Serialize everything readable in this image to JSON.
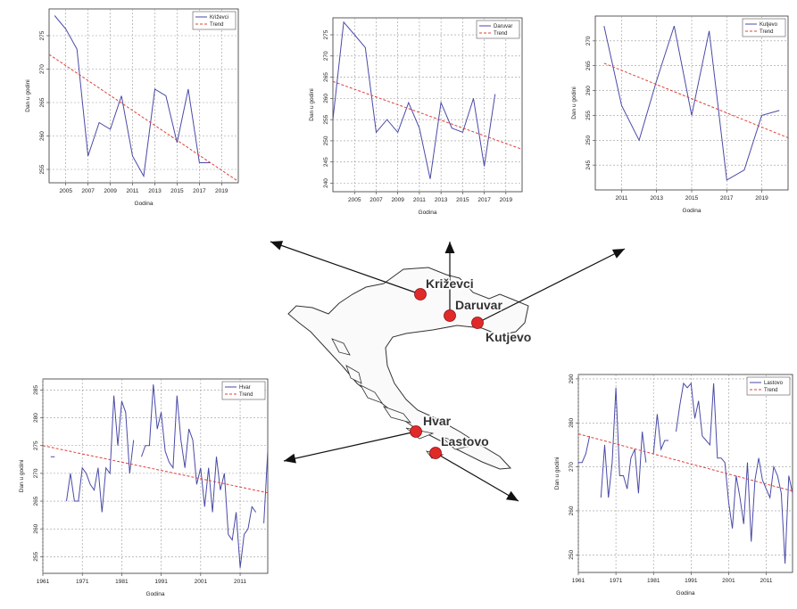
{
  "chart_data": [
    {
      "type": "line",
      "title": "",
      "xlabel": "Godina",
      "ylabel": "Dan u godini",
      "x": [
        2004,
        2005,
        2006,
        2007,
        2008,
        2009,
        2010,
        2011,
        2012,
        2013,
        2014,
        2015,
        2016,
        2017,
        2018
      ],
      "series": [
        {
          "name": "Križevci",
          "values": [
            278,
            276,
            273,
            257,
            262,
            261,
            266,
            257,
            254,
            267,
            266,
            259,
            267,
            256,
            256
          ]
        },
        {
          "name": "Trend",
          "values": [
            272.2,
            253.2
          ],
          "x": [
            2003.5,
            2020.5
          ],
          "dashed": true
        }
      ],
      "xticks": [
        2005,
        2007,
        2009,
        2011,
        2013,
        2015,
        2017,
        2019
      ],
      "yticks": [
        255,
        260,
        265,
        270,
        275
      ],
      "xlim": [
        2003.5,
        2020.5
      ],
      "ylim": [
        253,
        279
      ],
      "legend": "top-right",
      "colors": {
        "series": "#4a4aa8",
        "trend": "#e0403a"
      }
    },
    {
      "type": "line",
      "title": "",
      "xlabel": "Godina",
      "ylabel": "Dan u godini",
      "x": [
        2003,
        2004,
        2005,
        2006,
        2007,
        2008,
        2009,
        2010,
        2011,
        2012,
        2013,
        2014,
        2015,
        2016,
        2017,
        2018
      ],
      "series": [
        {
          "name": "Daruvar",
          "values": [
            255,
            278,
            275,
            272,
            252,
            255,
            252,
            259,
            253,
            241,
            259,
            253,
            252,
            260,
            244,
            261
          ]
        },
        {
          "name": "Trend",
          "values": [
            264,
            248
          ],
          "x": [
            2003,
            2020.5
          ],
          "dashed": true
        }
      ],
      "xticks": [
        2005,
        2007,
        2009,
        2011,
        2013,
        2015,
        2017,
        2019
      ],
      "yticks": [
        240,
        245,
        250,
        255,
        260,
        265,
        270,
        275
      ],
      "xlim": [
        2003,
        2020.5
      ],
      "ylim": [
        238,
        279
      ],
      "legend": "top-right",
      "colors": {
        "series": "#4a4aa8",
        "trend": "#e0403a"
      }
    },
    {
      "type": "line",
      "title": "",
      "xlabel": "Godina",
      "ylabel": "Dan u godini",
      "x": [
        2010,
        2011,
        2012,
        2013,
        2014,
        2015,
        2016,
        2017,
        2018,
        2019,
        2020
      ],
      "series": [
        {
          "name": "Kutjevo",
          "values": [
            273,
            257,
            250,
            262,
            273,
            255,
            272,
            242,
            244,
            255,
            256
          ]
        },
        {
          "name": "Trend",
          "values": [
            265.5,
            250.5
          ],
          "x": [
            2010,
            2020.5
          ],
          "dashed": true
        }
      ],
      "xticks": [
        2011,
        2013,
        2015,
        2017,
        2019
      ],
      "yticks": [
        245,
        250,
        255,
        260,
        265,
        270
      ],
      "xlim": [
        2009.5,
        2020.5
      ],
      "ylim": [
        240,
        275
      ],
      "legend": "top-right",
      "colors": {
        "series": "#4a4aa8",
        "trend": "#e0403a"
      }
    },
    {
      "type": "line",
      "title": "",
      "xlabel": "Godina",
      "ylabel": "Dan u godini",
      "x": [
        1961,
        1962,
        1963,
        1964,
        1965,
        1966,
        1967,
        1968,
        1969,
        1970,
        1971,
        1972,
        1973,
        1974,
        1975,
        1976,
        1977,
        1978,
        1979,
        1980,
        1981,
        1982,
        1983,
        1984,
        1985,
        1986,
        1987,
        1988,
        1989,
        1990,
        1991,
        1992,
        1993,
        1994,
        1995,
        1996,
        1997,
        1998,
        1999,
        2000,
        2001,
        2002,
        2003,
        2004,
        2005,
        2006,
        2007,
        2008,
        2009,
        2010,
        2011,
        2012,
        2013,
        2014,
        2015,
        2016,
        2017,
        2018
      ],
      "series": [
        {
          "name": "Hvar",
          "values": [
            274,
            null,
            273,
            273,
            null,
            null,
            265,
            270,
            265,
            265,
            271,
            270,
            268,
            267,
            271,
            263,
            271,
            270,
            284,
            275,
            283,
            281,
            270,
            276,
            null,
            273,
            275,
            275,
            286,
            278,
            281,
            274,
            272,
            271,
            284,
            276,
            271,
            278,
            276,
            268,
            271,
            264,
            271,
            263,
            273,
            267,
            270,
            259,
            258,
            263,
            253,
            259,
            260,
            264,
            263,
            null,
            261,
            274
          ]
        },
        {
          "name": "Trend",
          "values": [
            275,
            266.5
          ],
          "x": [
            1961,
            2018
          ],
          "dashed": true
        }
      ],
      "xticks": [
        1961,
        1971,
        1981,
        1991,
        2001,
        2011
      ],
      "yticks": [
        255,
        260,
        265,
        270,
        275,
        280,
        285
      ],
      "xlim": [
        1961,
        2018
      ],
      "ylim": [
        252,
        287
      ],
      "legend": "top-right",
      "colors": {
        "series": "#4a4aa8",
        "trend": "#e0403a"
      }
    },
    {
      "type": "line",
      "title": "",
      "xlabel": "Godina",
      "ylabel": "Dan u godini",
      "x": [
        1961,
        1962,
        1963,
        1964,
        1965,
        1966,
        1967,
        1968,
        1969,
        1970,
        1971,
        1972,
        1973,
        1974,
        1975,
        1976,
        1977,
        1978,
        1979,
        1980,
        1981,
        1982,
        1983,
        1984,
        1985,
        1986,
        1987,
        1988,
        1989,
        1990,
        1991,
        1992,
        1993,
        1994,
        1995,
        1996,
        1997,
        1998,
        1999,
        2000,
        2001,
        2002,
        2003,
        2004,
        2005,
        2006,
        2007,
        2008,
        2009,
        2010,
        2011,
        2012,
        2013,
        2014,
        2015,
        2016,
        2017,
        2018
      ],
      "series": [
        {
          "name": "Lastovo",
          "values": [
            271,
            271,
            273,
            277,
            null,
            null,
            263,
            275,
            263,
            271,
            288,
            268,
            268,
            265,
            272,
            274,
            264,
            278,
            271,
            null,
            273,
            282,
            274,
            276,
            276,
            null,
            278,
            284,
            289,
            288,
            289,
            281,
            285,
            277,
            276,
            275,
            289,
            272,
            272,
            271,
            262,
            256,
            268,
            263,
            257,
            271,
            253,
            267,
            272,
            267,
            265,
            263,
            270,
            268,
            264,
            248,
            268,
            264
          ]
        },
        {
          "name": "Trend",
          "values": [
            277.5,
            264.5
          ],
          "x": [
            1961,
            2018
          ],
          "dashed": true
        }
      ],
      "xticks": [
        1961,
        1971,
        1981,
        1991,
        2001,
        2011
      ],
      "yticks": [
        250,
        260,
        270,
        280,
        290
      ],
      "xlim": [
        1961,
        2018
      ],
      "ylim": [
        246,
        291
      ],
      "legend": "top-right",
      "colors": {
        "series": "#4a4aa8",
        "trend": "#e0403a"
      }
    }
  ],
  "map": {
    "stations": [
      {
        "name": "Križevci"
      },
      {
        "name": "Daruvar"
      },
      {
        "name": "Kutjevo"
      },
      {
        "name": "Hvar"
      },
      {
        "name": "Lastovo"
      }
    ],
    "colors": {
      "station": "#e02a2a",
      "land": "#fafafa",
      "outline": "#333333",
      "arrow": "#111111"
    }
  }
}
